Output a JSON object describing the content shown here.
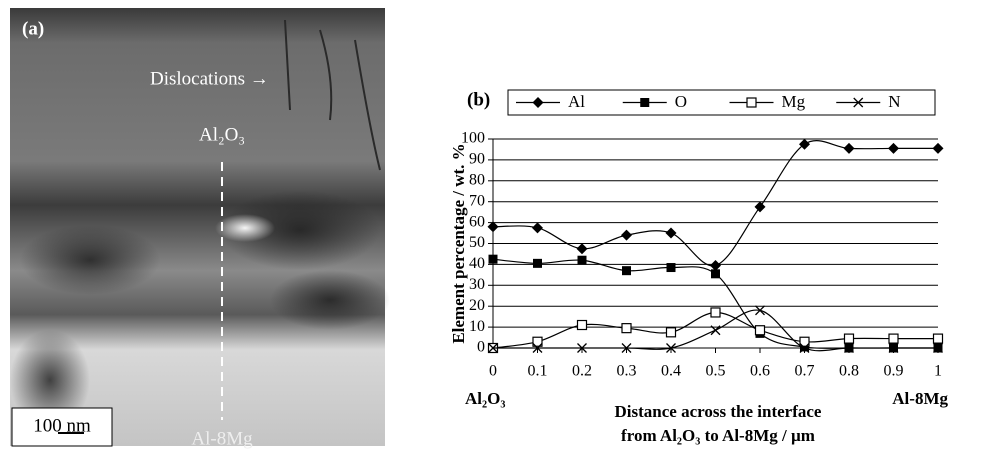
{
  "panel_a": {
    "label": "(a)",
    "dislocations": "Dislocations →",
    "top_label": "Al₂O₃",
    "bottom_label": "Al-8Mg",
    "scale_bar": "100 nm"
  },
  "chart_data": {
    "type": "line",
    "panel_label": "(b)",
    "ylabel": "Element percentage / wt. %",
    "xlabel": [
      "Distance across the interface",
      "from Al₂O₃ to Al-8Mg / µm"
    ],
    "x_end_labels": [
      "Al₂O₃",
      "Al-8Mg"
    ],
    "x": [
      0,
      0.1,
      0.2,
      0.3,
      0.4,
      0.5,
      0.6,
      0.7,
      0.8,
      0.9,
      1
    ],
    "xlim": [
      0,
      1
    ],
    "xticks": [
      0,
      0.1,
      0.2,
      0.3,
      0.4,
      0.5,
      0.6,
      0.7,
      0.8,
      0.9,
      1
    ],
    "ylim": [
      0,
      100
    ],
    "yticks": [
      0,
      10,
      20,
      30,
      40,
      50,
      60,
      70,
      80,
      90,
      100
    ],
    "grid": true,
    "smooth": true,
    "series": [
      {
        "name": "Al",
        "color": "#000000",
        "marker": "diamond",
        "values": [
          58,
          57.5,
          47.5,
          54,
          55,
          39.5,
          67.5,
          97.5,
          95.5,
          95.5,
          95.5
        ]
      },
      {
        "name": "O",
        "color": "#000000",
        "marker": "square",
        "values": [
          42.5,
          40.5,
          42,
          37,
          38.5,
          35.5,
          7,
          0.5,
          0,
          0,
          0
        ]
      },
      {
        "name": "Mg",
        "color": "#000000",
        "marker": "open-square",
        "values": [
          0,
          3,
          11,
          9.5,
          7.5,
          17,
          8.5,
          3,
          4.5,
          4.5,
          4.5
        ]
      },
      {
        "name": "N",
        "color": "#000000",
        "marker": "cross",
        "values": [
          0,
          0,
          0,
          0,
          0,
          8.5,
          18,
          0,
          0,
          0,
          0
        ]
      }
    ]
  }
}
